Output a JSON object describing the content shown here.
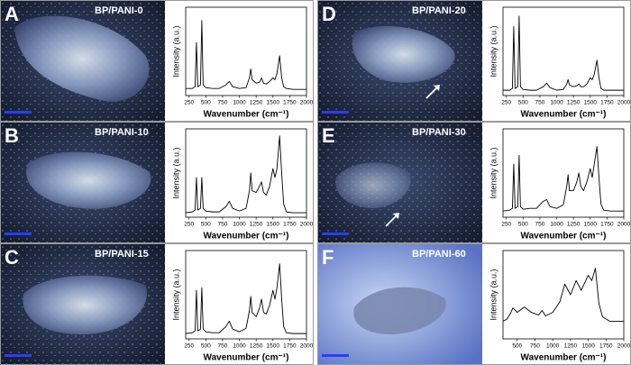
{
  "chart_data": [
    {
      "type": "line",
      "panel_label": "A",
      "title": "BP/PANI-0",
      "x_label": "Wavenumber (cm⁻¹)",
      "y_label": "Intensity (a.u.)",
      "color": "#000000",
      "xlim": [
        200,
        2000
      ],
      "ylim": [
        0,
        1
      ],
      "xticks": [
        250,
        500,
        750,
        1000,
        1250,
        1500,
        1750,
        2000
      ],
      "x": [
        200,
        300,
        340,
        360,
        380,
        420,
        440,
        460,
        500,
        600,
        700,
        800,
        850,
        900,
        1000,
        1100,
        1150,
        1170,
        1190,
        1250,
        1300,
        1330,
        1360,
        1400,
        1450,
        1500,
        1530,
        1560,
        1600,
        1630,
        1660,
        1700,
        1800,
        1900,
        2000
      ],
      "values": [
        0.08,
        0.08,
        0.1,
        0.6,
        0.1,
        0.12,
        0.85,
        0.12,
        0.09,
        0.08,
        0.08,
        0.12,
        0.16,
        0.1,
        0.08,
        0.09,
        0.2,
        0.3,
        0.18,
        0.14,
        0.15,
        0.2,
        0.14,
        0.13,
        0.16,
        0.2,
        0.18,
        0.25,
        0.45,
        0.2,
        0.1,
        0.08,
        0.07,
        0.07,
        0.07
      ]
    },
    {
      "type": "line",
      "panel_label": "B",
      "title": "BP/PANI-10",
      "x_label": "Wavenumber (cm⁻¹)",
      "y_label": "Intensity (a.u.)",
      "color": "#000000",
      "xlim": [
        200,
        2000
      ],
      "ylim": [
        0,
        1
      ],
      "xticks": [
        250,
        500,
        750,
        1000,
        1250,
        1500,
        1750,
        2000
      ],
      "x": [
        200,
        300,
        340,
        360,
        380,
        420,
        440,
        460,
        500,
        600,
        700,
        800,
        850,
        900,
        1000,
        1100,
        1150,
        1170,
        1190,
        1250,
        1300,
        1330,
        1360,
        1400,
        1450,
        1500,
        1530,
        1560,
        1600,
        1630,
        1660,
        1700,
        1800,
        1900,
        2000
      ],
      "values": [
        0.05,
        0.06,
        0.08,
        0.45,
        0.08,
        0.1,
        0.45,
        0.1,
        0.07,
        0.06,
        0.06,
        0.12,
        0.18,
        0.1,
        0.07,
        0.1,
        0.3,
        0.5,
        0.3,
        0.28,
        0.35,
        0.4,
        0.28,
        0.25,
        0.35,
        0.55,
        0.45,
        0.55,
        0.92,
        0.5,
        0.15,
        0.06,
        0.05,
        0.05,
        0.05
      ]
    },
    {
      "type": "line",
      "panel_label": "C",
      "title": "BP/PANI-15",
      "x_label": "Wavenumber (cm⁻¹)",
      "y_label": "Intensity (a.u.)",
      "color": "#000000",
      "xlim": [
        200,
        2000
      ],
      "ylim": [
        0,
        1
      ],
      "xticks": [
        250,
        500,
        750,
        1000,
        1250,
        1500,
        1750,
        2000
      ],
      "x": [
        200,
        300,
        340,
        360,
        380,
        420,
        440,
        460,
        500,
        600,
        700,
        800,
        850,
        900,
        1000,
        1100,
        1150,
        1170,
        1190,
        1250,
        1300,
        1330,
        1360,
        1400,
        1450,
        1500,
        1530,
        1560,
        1600,
        1630,
        1660,
        1700,
        1800,
        1900,
        2000
      ],
      "values": [
        0.06,
        0.07,
        0.09,
        0.55,
        0.09,
        0.11,
        0.58,
        0.11,
        0.08,
        0.07,
        0.07,
        0.14,
        0.2,
        0.11,
        0.08,
        0.12,
        0.32,
        0.48,
        0.3,
        0.25,
        0.35,
        0.45,
        0.3,
        0.28,
        0.38,
        0.55,
        0.45,
        0.58,
        0.85,
        0.45,
        0.14,
        0.07,
        0.06,
        0.06,
        0.06
      ]
    },
    {
      "type": "line",
      "panel_label": "D",
      "title": "BP/PANI-20",
      "x_label": "Wavenumber (cm⁻¹)",
      "y_label": "Intensity (a.u.)",
      "color": "#000000",
      "xlim": [
        200,
        2000
      ],
      "ylim": [
        0,
        1
      ],
      "xticks": [
        250,
        500,
        750,
        1000,
        1250,
        1500,
        1750,
        2000
      ],
      "x": [
        200,
        300,
        340,
        360,
        380,
        420,
        440,
        460,
        500,
        600,
        700,
        800,
        850,
        900,
        1000,
        1100,
        1150,
        1170,
        1190,
        1250,
        1300,
        1330,
        1360,
        1400,
        1450,
        1500,
        1530,
        1560,
        1600,
        1630,
        1660,
        1700,
        1800,
        1900,
        2000
      ],
      "values": [
        0.06,
        0.06,
        0.08,
        0.78,
        0.08,
        0.1,
        0.9,
        0.1,
        0.07,
        0.06,
        0.06,
        0.1,
        0.14,
        0.09,
        0.06,
        0.07,
        0.13,
        0.18,
        0.12,
        0.1,
        0.11,
        0.13,
        0.1,
        0.1,
        0.13,
        0.2,
        0.18,
        0.24,
        0.4,
        0.2,
        0.08,
        0.06,
        0.06,
        0.06,
        0.06
      ]
    },
    {
      "type": "line",
      "panel_label": "E",
      "title": "BP/PANI-30",
      "x_label": "Wavenumber (cm⁻¹)",
      "y_label": "Intensity (a.u.)",
      "color": "#000000",
      "xlim": [
        200,
        2000
      ],
      "ylim": [
        0,
        1
      ],
      "xticks": [
        250,
        500,
        750,
        1000,
        1250,
        1500,
        1750,
        2000
      ],
      "x": [
        200,
        300,
        340,
        360,
        380,
        420,
        440,
        460,
        500,
        600,
        700,
        800,
        850,
        900,
        1000,
        1100,
        1150,
        1170,
        1190,
        1250,
        1300,
        1330,
        1360,
        1400,
        1450,
        1500,
        1530,
        1560,
        1600,
        1630,
        1660,
        1700,
        1800,
        1900,
        2000
      ],
      "values": [
        0.07,
        0.08,
        0.1,
        0.6,
        0.1,
        0.12,
        0.7,
        0.12,
        0.09,
        0.1,
        0.1,
        0.18,
        0.2,
        0.12,
        0.1,
        0.14,
        0.35,
        0.48,
        0.3,
        0.3,
        0.4,
        0.5,
        0.35,
        0.3,
        0.4,
        0.55,
        0.45,
        0.6,
        0.8,
        0.45,
        0.15,
        0.08,
        0.07,
        0.07,
        0.07
      ]
    },
    {
      "type": "line",
      "panel_label": "F",
      "title": "BP/PANI-60",
      "x_label": "Wavenumber (cm⁻¹)",
      "y_label": "Intensity (a.u.)",
      "color": "#000000",
      "xlim": [
        300,
        2000
      ],
      "ylim": [
        0,
        1
      ],
      "xticks": [
        500,
        750,
        1000,
        1250,
        1500,
        1750,
        2000
      ],
      "x": [
        300,
        350,
        400,
        440,
        500,
        550,
        600,
        700,
        800,
        850,
        900,
        1000,
        1100,
        1170,
        1250,
        1330,
        1400,
        1500,
        1550,
        1600,
        1650,
        1700,
        1800,
        1900,
        2000
      ],
      "values": [
        0.2,
        0.22,
        0.28,
        0.35,
        0.3,
        0.33,
        0.36,
        0.3,
        0.27,
        0.32,
        0.26,
        0.3,
        0.42,
        0.62,
        0.5,
        0.66,
        0.55,
        0.72,
        0.66,
        0.8,
        0.4,
        0.25,
        0.2,
        0.2,
        0.2
      ]
    }
  ]
}
